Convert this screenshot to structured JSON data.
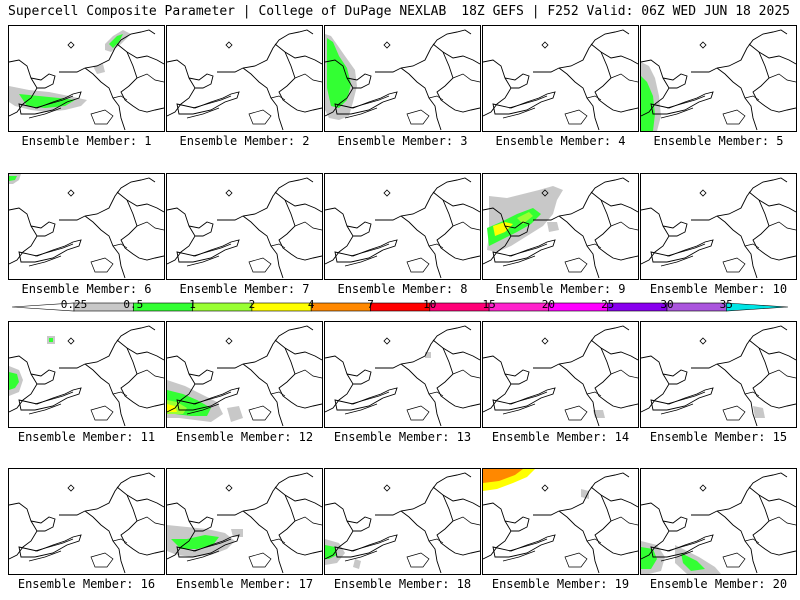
{
  "header": {
    "title_left": "Supercell Composite Parameter | College of DuPage NEXLAB",
    "title_right": "18Z GEFS | F252 Valid: 06Z WED JUN 18 2025"
  },
  "panels": [
    {
      "label": "Ensemble Member: 1"
    },
    {
      "label": "Ensemble Member: 2"
    },
    {
      "label": "Ensemble Member: 3"
    },
    {
      "label": "Ensemble Member: 4"
    },
    {
      "label": "Ensemble Member: 5"
    },
    {
      "label": "Ensemble Member: 6"
    },
    {
      "label": "Ensemble Member: 7"
    },
    {
      "label": "Ensemble Member: 8"
    },
    {
      "label": "Ensemble Member: 9"
    },
    {
      "label": "Ensemble Member: 10"
    },
    {
      "label": "Ensemble Member: 11"
    },
    {
      "label": "Ensemble Member: 12"
    },
    {
      "label": "Ensemble Member: 13"
    },
    {
      "label": "Ensemble Member: 14"
    },
    {
      "label": "Ensemble Member: 15"
    },
    {
      "label": "Ensemble Member: 16"
    },
    {
      "label": "Ensemble Member: 17"
    },
    {
      "label": "Ensemble Member: 18"
    },
    {
      "label": "Ensemble Member: 19"
    },
    {
      "label": "Ensemble Member: 20"
    }
  ],
  "colorbar": {
    "levels": [
      "0.25",
      "0.5",
      "1",
      "2",
      "4",
      "7",
      "10",
      "15",
      "20",
      "25",
      "30",
      "35"
    ],
    "colors": [
      "#c8c8c8",
      "#33ff33",
      "#99ff33",
      "#ffff00",
      "#ff8800",
      "#ff0000",
      "#ff0077",
      "#ff22cc",
      "#ff00ff",
      "#8800ee",
      "#aa55dd",
      "#00e5e5"
    ]
  }
}
